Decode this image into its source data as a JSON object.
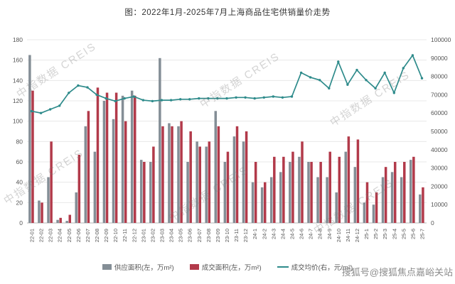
{
  "title": "图：2022年1月-2025年7月上海商品住宅供销量价走势",
  "watermark": {
    "text": "中指数据 CREIS",
    "sohu": "搜狐号@搜狐焦点嘉峪关站"
  },
  "colors": {
    "supply_bar": "#848e96",
    "deal_bar": "#b23a4a",
    "price_line": "#2e8b8b"
  },
  "chart_data": {
    "type": "bar",
    "title": "图：2022年1月-2025年7月上海商品住宅供销量价走势",
    "categories": [
      "22-01",
      "22-02",
      "22-03",
      "22-04",
      "22-05",
      "22-06",
      "22-07",
      "22-08",
      "22-09",
      "22-10",
      "22-11",
      "22-12",
      "23-01",
      "23-02",
      "23-03",
      "23-04",
      "23-05",
      "23-06",
      "23-07",
      "23-08",
      "23-09",
      "23-10",
      "23-11",
      "23-12",
      "24-1",
      "24-2",
      "24-3",
      "24-4",
      "24-5",
      "24-6",
      "24-7",
      "24-8",
      "24-9",
      "24-10",
      "24-11",
      "24-12",
      "25-1",
      "25-2",
      "25-3",
      "25-4",
      "25-5",
      "25-6",
      "25-7"
    ],
    "series": [
      {
        "name": "供应面积(左，万m²)",
        "type": "bar",
        "axis": "left",
        "color": "#848e96",
        "values": [
          165,
          22,
          45,
          3,
          2,
          30,
          95,
          70,
          120,
          102,
          125,
          130,
          62,
          60,
          162,
          98,
          95,
          60,
          80,
          75,
          110,
          60,
          85,
          80,
          40,
          35,
          45,
          50,
          60,
          65,
          60,
          45,
          45,
          30,
          70,
          55,
          20,
          18,
          45,
          50,
          45,
          62,
          28
        ]
      },
      {
        "name": "成交面积(左，万m²)",
        "type": "bar",
        "axis": "left",
        "color": "#b23a4a",
        "values": [
          130,
          20,
          80,
          5,
          8,
          67,
          110,
          133,
          128,
          128,
          100,
          125,
          60,
          75,
          95,
          95,
          100,
          90,
          75,
          80,
          95,
          70,
          95,
          90,
          60,
          40,
          65,
          65,
          70,
          80,
          60,
          60,
          70,
          65,
          85,
          82,
          40,
          30,
          55,
          60,
          60,
          65,
          35
        ]
      },
      {
        "name": "成交均价(右，元/m²)",
        "type": "line",
        "axis": "right",
        "color": "#2e8b8b",
        "values": [
          61000,
          60000,
          62000,
          64000,
          71000,
          75000,
          74000,
          70000,
          68000,
          66500,
          68000,
          69000,
          67000,
          66500,
          67000,
          67000,
          67500,
          67500,
          68000,
          68000,
          68000,
          68000,
          68500,
          68500,
          68000,
          68500,
          69000,
          68500,
          69000,
          82000,
          79500,
          78000,
          73500,
          88000,
          75500,
          83500,
          78000,
          73500,
          82000,
          71000,
          84500,
          91500,
          79000
        ]
      }
    ],
    "left_axis": {
      "min": 0,
      "max": 180,
      "step": 20
    },
    "right_axis": {
      "min": 0,
      "max": 100000,
      "step": 10000
    },
    "grid": true,
    "legend_position": "bottom"
  }
}
